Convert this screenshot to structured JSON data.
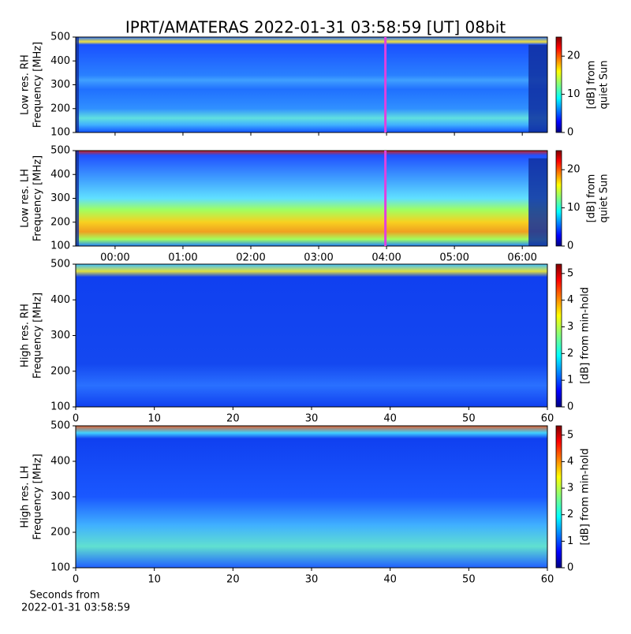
{
  "figure": {
    "title": "IPRT/AMATERAS 2022-01-31 03:58:59 [UT]   08bit",
    "footnote": [
      "Seconds from",
      "2022-01-31 03:58:59"
    ]
  },
  "chart_data": [
    {
      "type": "heatmap",
      "ylabel": [
        "Low res. RH",
        "Frequency [MHz]"
      ],
      "ylim": [
        100,
        500
      ],
      "yticks": [
        100,
        200,
        300,
        400,
        500
      ],
      "xlim": [
        -0.58,
        6.37
      ],
      "marker_x": 3.983,
      "marker_color": "#e040e0",
      "colorbar": {
        "label": [
          "[dB] from",
          "quiet Sun"
        ],
        "lim": [
          0,
          25
        ],
        "ticks": [
          0,
          10,
          20
        ]
      }
    },
    {
      "type": "heatmap",
      "ylabel": [
        "Low res. LH",
        "Frequency [MHz]"
      ],
      "ylim": [
        100,
        500
      ],
      "yticks": [
        100,
        200,
        300,
        400,
        500
      ],
      "xlim": [
        -0.58,
        6.37
      ],
      "marker_x": 3.983,
      "marker_color": "#e040e0",
      "xticks": [
        {
          "value": 0,
          "label": "00:00"
        },
        {
          "value": 1,
          "label": "01:00"
        },
        {
          "value": 2,
          "label": "02:00"
        },
        {
          "value": 3,
          "label": "03:00"
        },
        {
          "value": 4,
          "label": "04:00"
        },
        {
          "value": 5,
          "label": "05:00"
        },
        {
          "value": 6,
          "label": "06:00"
        }
      ],
      "colorbar": {
        "label": [
          "[dB] from",
          "quiet Sun"
        ],
        "lim": [
          0,
          25
        ],
        "ticks": [
          0,
          10,
          20
        ]
      }
    },
    {
      "type": "heatmap",
      "ylabel": [
        "High res. RH",
        "Frequency [MHz]"
      ],
      "ylim": [
        100,
        500
      ],
      "yticks": [
        100,
        200,
        300,
        400,
        500
      ],
      "xlim": [
        0,
        60
      ],
      "xticks": [
        0,
        10,
        20,
        30,
        40,
        50,
        60
      ],
      "colorbar": {
        "label": [
          "[dB] from min-hold"
        ],
        "lim": [
          0,
          5.35
        ],
        "ticks": [
          0,
          1,
          2,
          3,
          4,
          5
        ]
      }
    },
    {
      "type": "heatmap",
      "ylabel": [
        "High res. LH",
        "Frequency [MHz]"
      ],
      "ylim": [
        100,
        500
      ],
      "yticks": [
        100,
        200,
        300,
        400,
        500
      ],
      "xlim": [
        0,
        60
      ],
      "xticks": [
        0,
        10,
        20,
        30,
        40,
        50,
        60
      ],
      "colorbar": {
        "label": [
          "[dB] from min-hold"
        ],
        "lim": [
          0,
          5.35
        ],
        "ticks": [
          0,
          1,
          2,
          3,
          4,
          5
        ]
      }
    }
  ]
}
